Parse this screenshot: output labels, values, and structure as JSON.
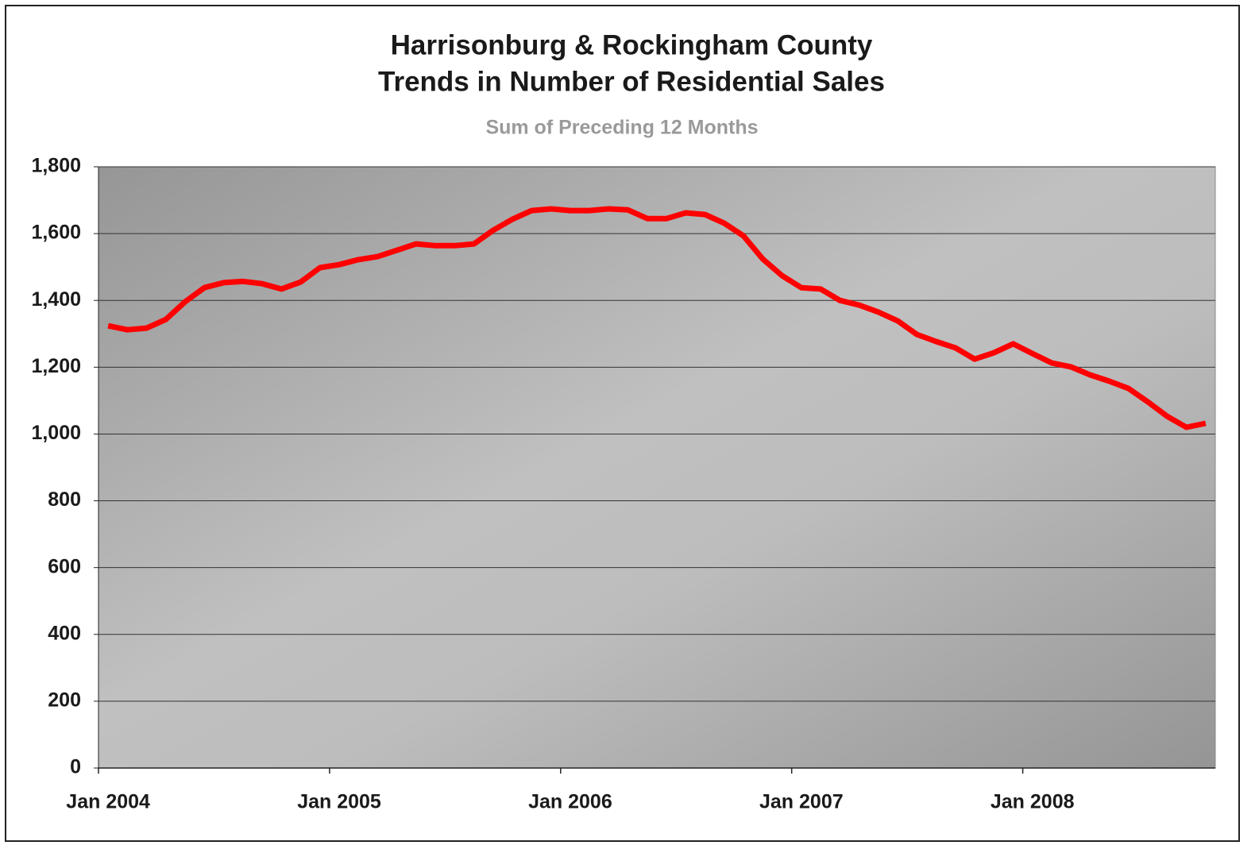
{
  "chart_data": {
    "type": "line",
    "title": [
      "Harrisonburg & Rockingham County",
      "Trends in Number of Residential Sales"
    ],
    "subtitle": "Sum of Preceding 12 Months",
    "categories": [
      "Jan 2004",
      null,
      null,
      null,
      null,
      null,
      null,
      null,
      null,
      null,
      null,
      null,
      "Jan 2005",
      null,
      null,
      null,
      null,
      null,
      null,
      null,
      null,
      null,
      null,
      null,
      "Jan 2006",
      null,
      null,
      null,
      null,
      null,
      null,
      null,
      null,
      null,
      null,
      null,
      "Jan 2007",
      null,
      null,
      null,
      null,
      null,
      null,
      null,
      null,
      null,
      null,
      null,
      "Jan 2008",
      null,
      null,
      null,
      null,
      null,
      null,
      null,
      null,
      null
    ],
    "series": [
      {
        "name": "Residential Sales",
        "color": "#ff0000",
        "values": [
          1324,
          1312,
          1317,
          1343,
          1396,
          1438,
          1453,
          1457,
          1450,
          1434,
          1455,
          1498,
          1507,
          1522,
          1531,
          1550,
          1569,
          1564,
          1564,
          1569,
          1610,
          1643,
          1669,
          1674,
          1669,
          1669,
          1674,
          1671,
          1645,
          1645,
          1662,
          1657,
          1631,
          1593,
          1524,
          1474,
          1438,
          1434,
          1400,
          1386,
          1365,
          1339,
          1298,
          1277,
          1258,
          1224,
          1243,
          1270,
          1241,
          1213,
          1201,
          1177,
          1158,
          1136,
          1096,
          1053,
          1020,
          1032
        ]
      }
    ],
    "ylim": [
      0,
      1800
    ],
    "yticks": [
      0,
      200,
      400,
      600,
      800,
      {
        "value": 1000,
        "label": "1,000"
      },
      {
        "value": 1200,
        "label": "1,200"
      },
      {
        "value": 1400,
        "label": "1,400"
      },
      {
        "value": 1600,
        "label": "1,600"
      },
      {
        "value": 1800,
        "label": "1,800"
      }
    ],
    "grid": true
  }
}
